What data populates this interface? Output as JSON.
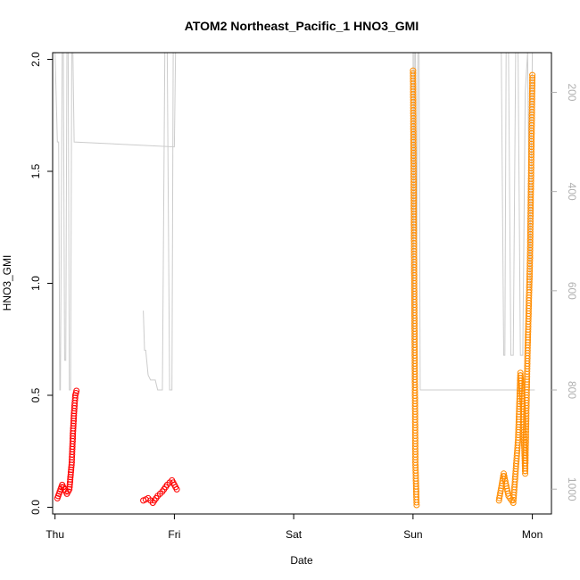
{
  "chart_data": {
    "type": "scatter",
    "title": "ATOM2 Northeast_Pacific_1 HNO3_GMI",
    "xlabel": "Date",
    "ylabel": "HNO3_GMI",
    "x_ticks": [
      "Thu",
      "Fri",
      "Sat",
      "Sun",
      "Mon"
    ],
    "xlim": [
      -0.02,
      4.16
    ],
    "ylim": [
      -0.03,
      2.03
    ],
    "y_ticks": [
      0.0,
      0.5,
      1.0,
      1.5,
      2.0
    ],
    "y_tick_labels": [
      "0.0",
      "0.5",
      "1.0",
      "1.5",
      "2.0"
    ],
    "y2_label_ticks": [
      200,
      400,
      600,
      800,
      1000
    ],
    "y2_lim": [
      1050,
      120
    ],
    "y2_color": "#b0b0b0",
    "grid": false,
    "series": [
      {
        "color": "#ff0000",
        "segments": [
          {
            "t": [
              0.02,
              0.06,
              0.1,
              0.12,
              0.14,
              0.15,
              0.16,
              0.17,
              0.18
            ],
            "y": [
              0.04,
              0.1,
              0.06,
              0.08,
              0.2,
              0.33,
              0.43,
              0.5,
              0.52
            ]
          },
          {
            "t": [
              0.74,
              0.78,
              0.82,
              0.86,
              0.9,
              0.94,
              0.98,
              1.02
            ],
            "y": [
              0.03,
              0.04,
              0.02,
              0.05,
              0.07,
              0.1,
              0.12,
              0.08
            ]
          }
        ]
      },
      {
        "color": "#ff8c00",
        "segments": [
          {
            "t": [
              3.0,
              3.01,
              3.02,
              3.03
            ],
            "y": [
              1.95,
              1.0,
              0.2,
              0.01
            ]
          },
          {
            "t": [
              3.72,
              3.76,
              3.8,
              3.84,
              3.88,
              3.9,
              3.92,
              3.94,
              3.96,
              3.98,
              4.0
            ],
            "y": [
              0.03,
              0.15,
              0.05,
              0.02,
              0.3,
              0.6,
              0.45,
              0.15,
              0.7,
              1.1,
              1.93
            ]
          }
        ]
      }
    ],
    "altitude_trace": {
      "color": "#cccccc",
      "segments": [
        {
          "t": [
            0.0,
            0.02,
            0.03,
            0.04,
            0.045,
            0.06,
            0.07,
            0.08,
            0.09,
            0.1,
            0.11,
            0.12,
            0.13,
            0.14,
            0.15,
            0.16,
            1.0,
            1.01
          ],
          "p": [
            120,
            300,
            300,
            800,
            800,
            120,
            120,
            740,
            740,
            120,
            120,
            800,
            800,
            120,
            120,
            300,
            310,
            120
          ]
        },
        {
          "t": [
            0.74,
            0.75,
            0.76,
            0.78,
            0.8,
            0.84,
            0.86,
            0.9,
            0.92,
            0.94,
            0.96,
            0.98,
            0.99,
            1.0
          ],
          "p": [
            640,
            720,
            720,
            770,
            780,
            780,
            800,
            800,
            120,
            120,
            800,
            800,
            120,
            120
          ]
        },
        {
          "t": [
            3.0,
            3.005,
            3.01,
            3.02,
            3.03,
            3.04,
            3.05,
            3.06,
            3.07,
            4.0,
            4.02
          ],
          "p": [
            120,
            800,
            120,
            120,
            560,
            120,
            120,
            800,
            800,
            800,
            800
          ]
        },
        {
          "t": [
            3.74,
            3.76,
            3.77,
            3.78,
            3.8,
            3.82,
            3.84,
            3.86,
            3.88,
            3.9,
            3.92,
            3.94,
            3.96,
            3.98,
            4.0
          ],
          "p": [
            120,
            730,
            730,
            120,
            120,
            730,
            730,
            120,
            120,
            730,
            730,
            200,
            120,
            600,
            120
          ]
        }
      ]
    }
  }
}
